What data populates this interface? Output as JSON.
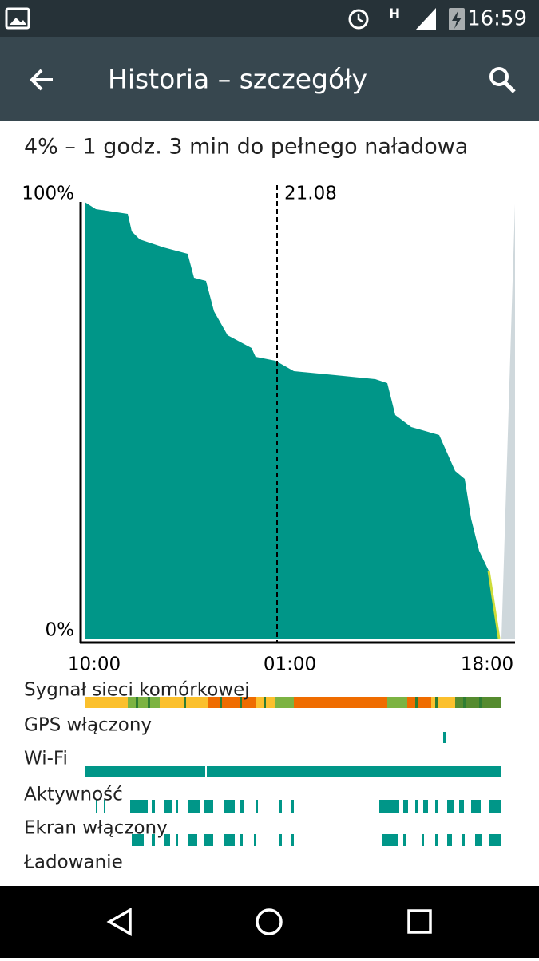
{
  "status_bar": {
    "network": "H",
    "time": "16:59"
  },
  "app_bar": {
    "title": "Historia – szczegóły"
  },
  "summary": "4% – 1 godz. 3 min do pełnego naładowa",
  "chart": {
    "y_labels": [
      "100%",
      "0%"
    ],
    "marker_label": "21.08",
    "x_labels": [
      "10:00",
      "01:00",
      "18:00"
    ]
  },
  "rows": [
    "Sygnał sieci komórkowej",
    "GPS włączony",
    "Wi-Fi",
    "Aktywność",
    "Ekran włączony",
    "Ładowanie"
  ]
}
